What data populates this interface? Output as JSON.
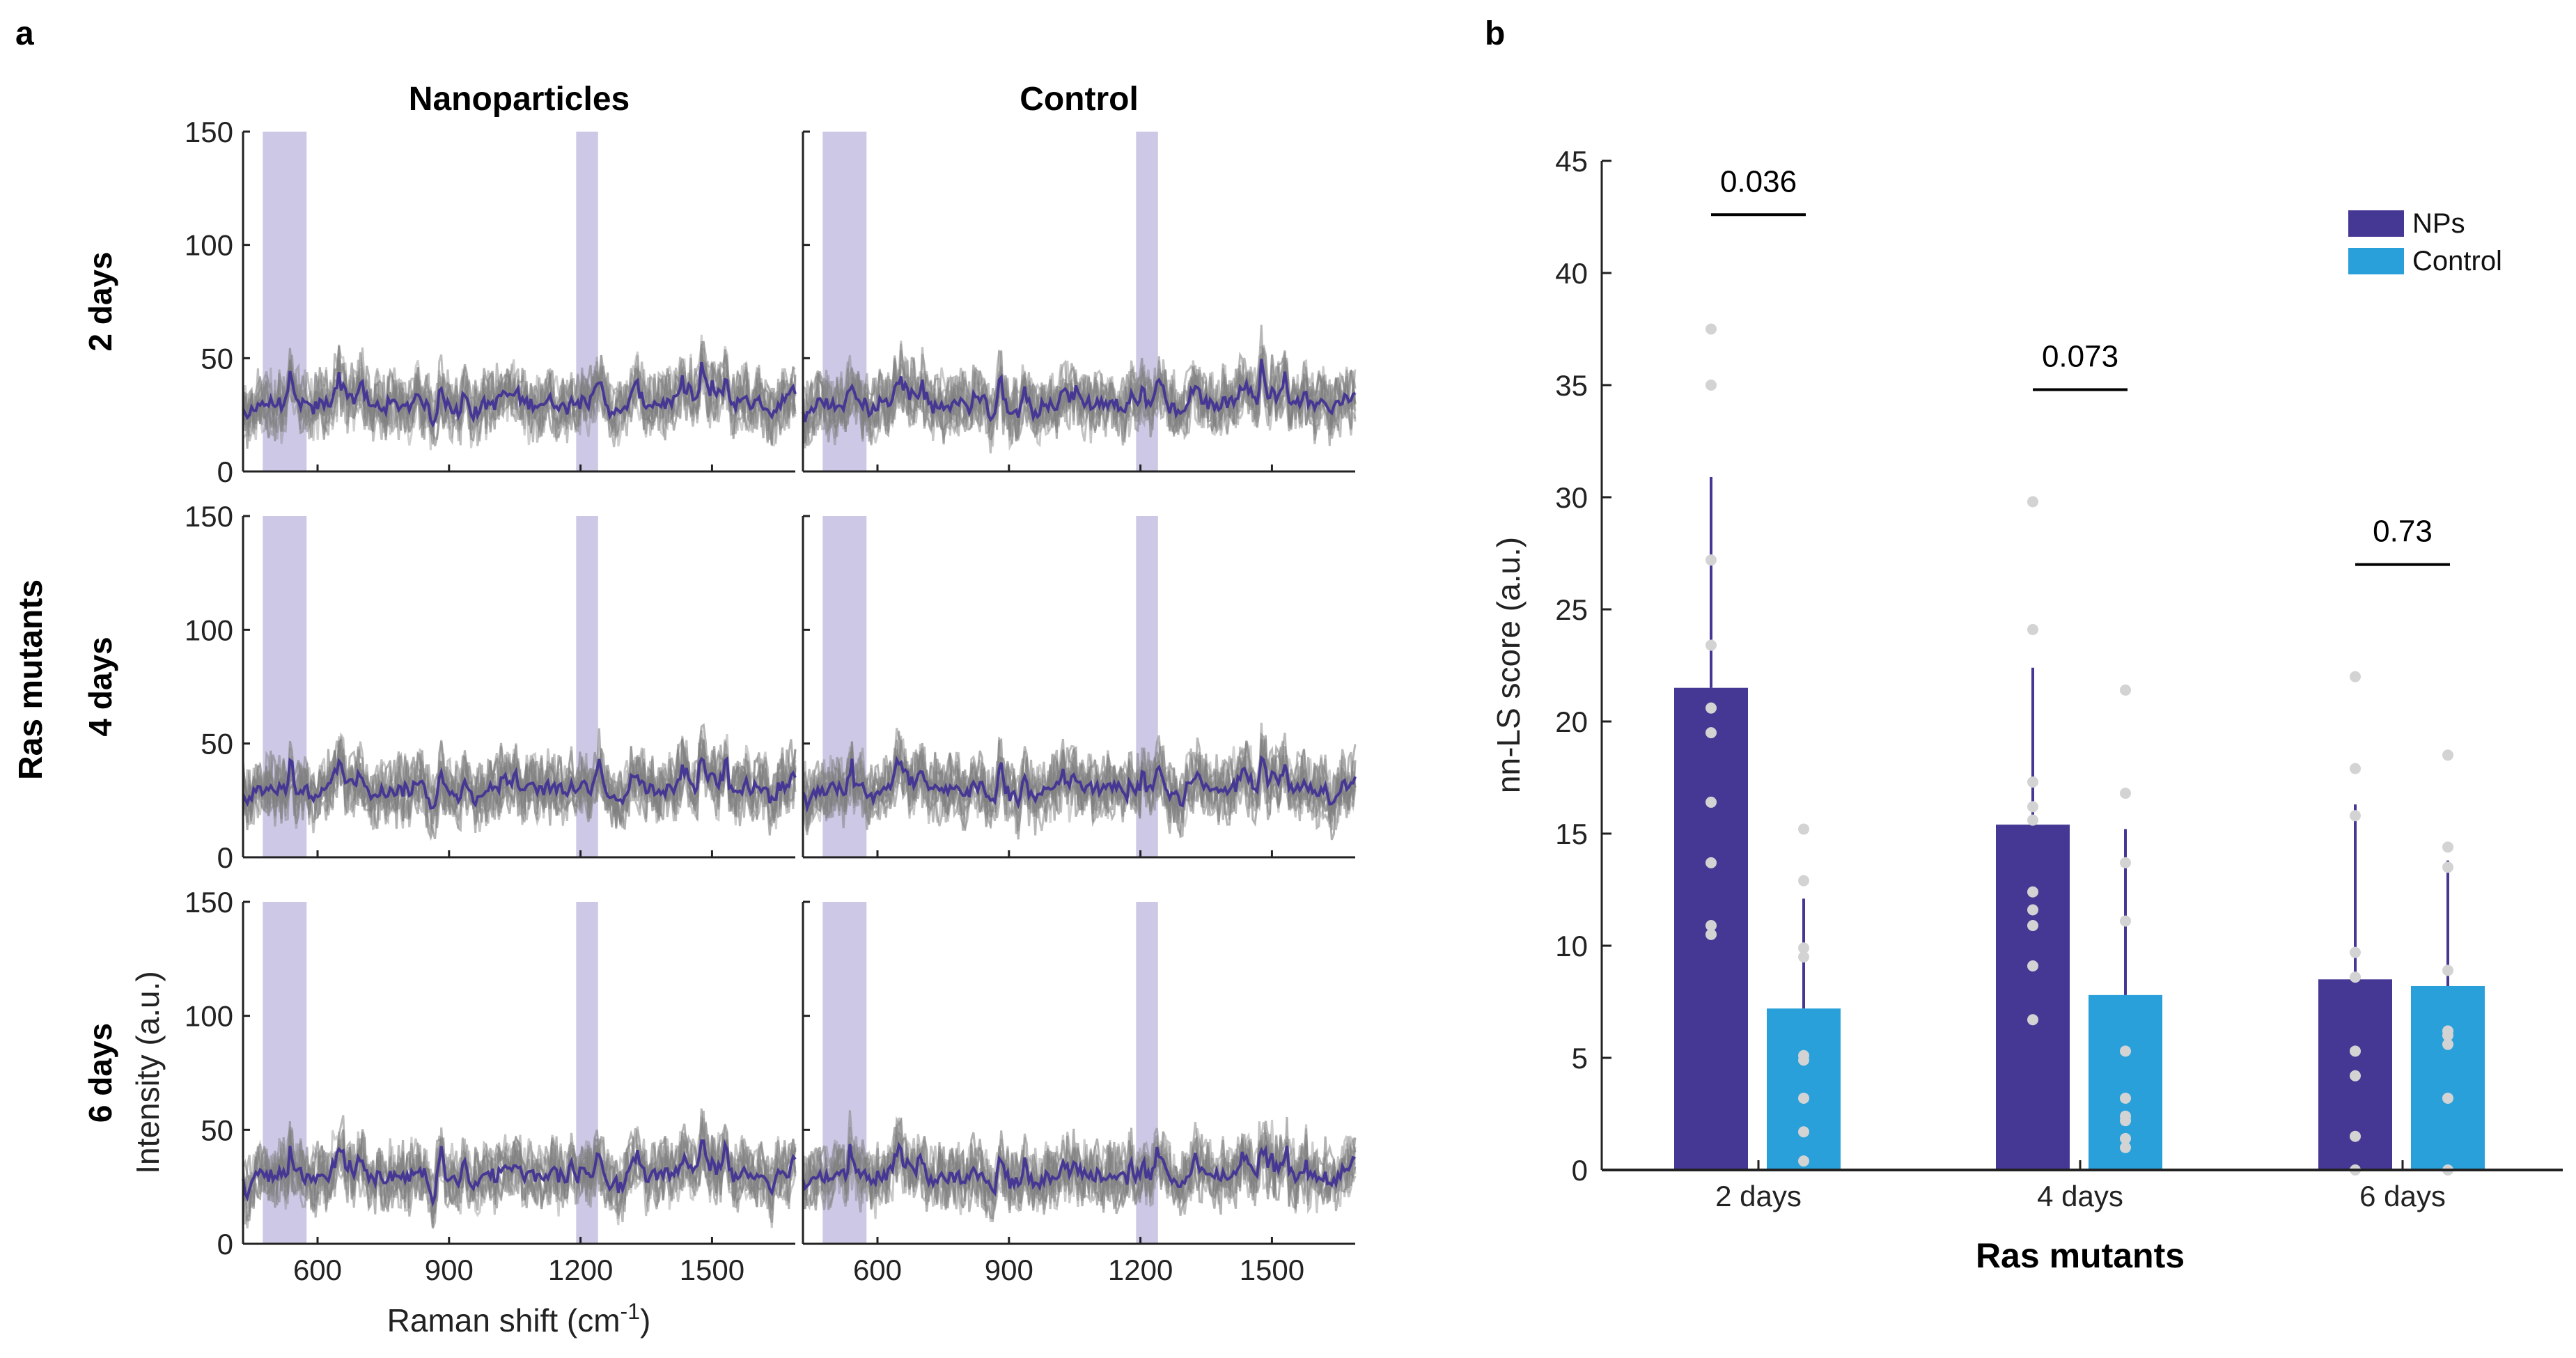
{
  "panel_labels": {
    "a": "a",
    "b": "b"
  },
  "colors": {
    "np": "#453894",
    "control": "#2aa0db",
    "band": "#cdc8e5",
    "trace": "#808080",
    "dot": "#d3d3d3"
  },
  "chart_data": [
    {
      "type": "line",
      "panel": "a",
      "column_titles": [
        "Nanoparticles",
        "Control"
      ],
      "row_titles": [
        "2 days",
        "4 days",
        "6 days"
      ],
      "group_label": "Ras mutants",
      "xlabel": "Raman shift (cm",
      "xlabel_sup": "-1",
      "xlabel_end": ")",
      "ylabel": "Intensity (a.u.)",
      "xlim": [
        430,
        1690
      ],
      "ylim": [
        0,
        150
      ],
      "xticks": [
        600,
        900,
        1200,
        1500
      ],
      "yticks": [
        0,
        50,
        100,
        150
      ],
      "highlight_bands": [
        [
          475,
          575
        ],
        [
          1190,
          1240
        ]
      ],
      "traces_per_panel": 10,
      "mean_level": 30,
      "series_note": "individual spectra (grey) and mean spectrum (purple)"
    },
    {
      "type": "bar",
      "panel": "b",
      "categories": [
        "2 days",
        "4 days",
        "6 days"
      ],
      "xlabel": "Ras mutants",
      "ylabel": "nn-LS score (a.u.)",
      "ylim": [
        0,
        45
      ],
      "yticks": [
        0,
        5,
        10,
        15,
        20,
        25,
        30,
        35,
        40,
        45
      ],
      "legend_position": "top-right",
      "series": [
        {
          "name": "NPs",
          "values": [
            21.5,
            15.4,
            8.5
          ],
          "error_upper": [
            30.9,
            22.4,
            16.3
          ],
          "points": [
            [
              37.5,
              35.0,
              27.2,
              23.4,
              20.6,
              19.5,
              16.4,
              13.7,
              10.9,
              10.5
            ],
            [
              29.8,
              24.1,
              17.3,
              16.2,
              15.6,
              12.4,
              11.6,
              10.9,
              9.1,
              6.7
            ],
            [
              22.0,
              17.9,
              15.8,
              9.7,
              8.6,
              5.3,
              4.2,
              1.5,
              0.0
            ]
          ]
        },
        {
          "name": "Control",
          "values": [
            7.2,
            7.8,
            8.2
          ],
          "error_upper": [
            12.1,
            15.2,
            13.8
          ],
          "points": [
            [
              15.2,
              12.9,
              9.9,
              9.5,
              5.1,
              4.9,
              3.2,
              1.7,
              0.4
            ],
            [
              21.4,
              16.8,
              13.7,
              11.1,
              5.3,
              3.2,
              2.4,
              2.2,
              1.4,
              1.0
            ],
            [
              18.5,
              14.4,
              13.5,
              8.9,
              6.2,
              6.0,
              5.6,
              3.2,
              0.0
            ]
          ]
        }
      ],
      "annotations": [
        {
          "category": "2 days",
          "text": "0.036",
          "y": 42.6
        },
        {
          "category": "4 days",
          "text": "0.073",
          "y": 34.8
        },
        {
          "category": "6 days",
          "text": "0.73",
          "y": 27.0
        }
      ]
    }
  ]
}
